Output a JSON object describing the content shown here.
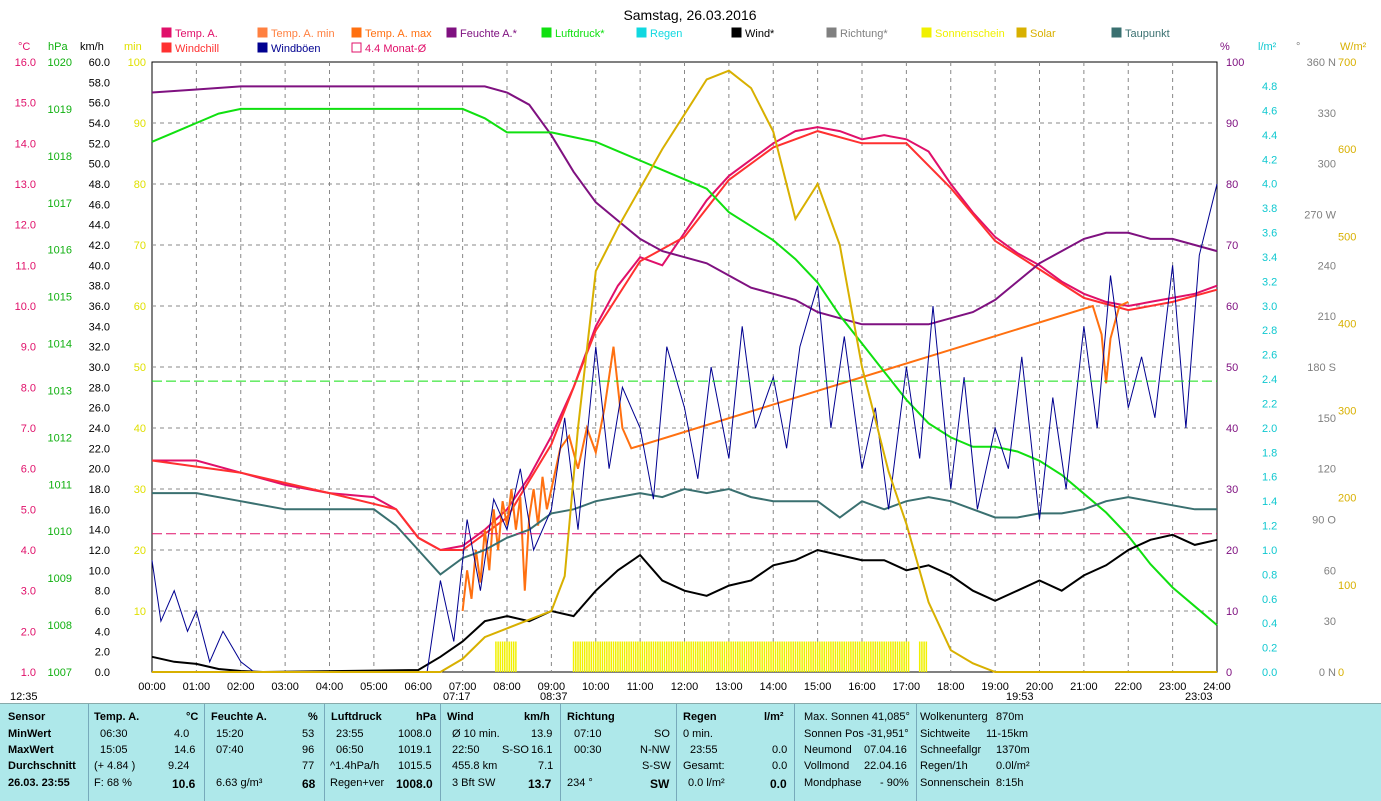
{
  "title": "Samstag, 26.03.2016",
  "legend": [
    {
      "label": "Temp. A.",
      "color": "#e0106a"
    },
    {
      "label": "Temp. A. min",
      "color": "#ff8040"
    },
    {
      "label": "Temp. A. max",
      "color": "#ff7010"
    },
    {
      "label": "Feuchte A.*",
      "color": "#7f1180"
    },
    {
      "label": "Luftdruck*",
      "color": "#10e010"
    },
    {
      "label": "Regen",
      "color": "#10d8e0"
    },
    {
      "label": "Wind*",
      "color": "#000000"
    },
    {
      "label": "Richtung*",
      "color": "#808080"
    },
    {
      "label": "Sonnenschein",
      "color": "#f0f000"
    },
    {
      "label": "Solar",
      "color": "#d8b000"
    },
    {
      "label": "Taupunkt",
      "color": "#3a7070"
    },
    {
      "label": "Windchill",
      "color": "#ff3030"
    },
    {
      "label": "Windböen",
      "color": "#000090"
    },
    {
      "label": "4.4 Monat-Ø",
      "color": "#e0106a"
    }
  ],
  "unit_labels": {
    "temp": "°C",
    "press": "hPa",
    "wind": "km/h",
    "min": "min",
    "hum": "%",
    "rain": "l/m²",
    "dir": "°",
    "solar": "W/m²"
  },
  "axes": {
    "temp": [
      "16.0",
      "15.0",
      "14.0",
      "13.0",
      "12.0",
      "11.0",
      "10.0",
      "9.0",
      "8.0",
      "7.0",
      "6.0",
      "5.0",
      "4.0",
      "3.0",
      "2.0",
      "1.0"
    ],
    "press": [
      "1020",
      "1019",
      "1018",
      "1017",
      "1016",
      "1015",
      "1014",
      "1013",
      "1012",
      "1011",
      "1010",
      "1009",
      "1008",
      "1007"
    ],
    "wind": [
      "60.0",
      "58.0",
      "56.0",
      "54.0",
      "52.0",
      "50.0",
      "48.0",
      "46.0",
      "44.0",
      "42.0",
      "40.0",
      "38.0",
      "36.0",
      "34.0",
      "32.0",
      "30.0",
      "28.0",
      "26.0",
      "24.0",
      "22.0",
      "20.0",
      "18.0",
      "16.0",
      "14.0",
      "12.0",
      "10.0",
      "8.0",
      "6.0",
      "4.0",
      "2.0",
      "0.0"
    ],
    "min": [
      "100",
      "90",
      "80",
      "70",
      "60",
      "50",
      "40",
      "30",
      "20",
      "10"
    ],
    "hum": [
      "100",
      "90",
      "80",
      "70",
      "60",
      "50",
      "40",
      "30",
      "20",
      "10",
      "0"
    ],
    "rain": [
      "4.8",
      "4.6",
      "4.4",
      "4.2",
      "4.0",
      "3.8",
      "3.6",
      "3.4",
      "3.2",
      "3.0",
      "2.8",
      "2.6",
      "2.4",
      "2.2",
      "2.0",
      "1.8",
      "1.6",
      "1.4",
      "1.2",
      "1.0",
      "0.8",
      "0.6",
      "0.4",
      "0.2",
      "0.0"
    ],
    "dir": [
      "360 N",
      "330",
      "300",
      "270 W",
      "240",
      "210",
      "180 S",
      "150",
      "120",
      "90 O",
      "60",
      "30",
      "0 N"
    ],
    "solar": [
      "700",
      "600",
      "500",
      "400",
      "300",
      "200",
      "100",
      "0"
    ],
    "time": [
      "00:00",
      "01:00",
      "02:00",
      "03:00",
      "04:00",
      "05:00",
      "06:00",
      "07:00",
      "08:00",
      "09:00",
      "10:00",
      "11:00",
      "12:00",
      "13:00",
      "14:00",
      "15:00",
      "16:00",
      "17:00",
      "18:00",
      "19:00",
      "20:00",
      "21:00",
      "22:00",
      "23:00",
      "24:00"
    ]
  },
  "time_markers": {
    "left": "12:35",
    "sunrise": "07:17",
    "solar_noon": "08:37",
    "sunset": "19:53",
    "moon": "23:03"
  },
  "chart_data": {
    "type": "line",
    "title": "Samstag, 26.03.2016",
    "x_unit": "hour",
    "temp_range": [
      1,
      16
    ],
    "press_range": [
      1007,
      1020
    ],
    "wind_range": [
      0,
      60
    ],
    "hum_range": [
      0,
      100
    ],
    "solar_range": [
      0,
      700
    ],
    "series": [
      {
        "name": "Temp. A.",
        "axis": "temp",
        "color": "#e0106a",
        "x": [
          0,
          1,
          2,
          3,
          4,
          5,
          5.5,
          6,
          6.5,
          7,
          7.5,
          8,
          8.5,
          9,
          9.5,
          10,
          10.5,
          11,
          11.5,
          12,
          12.5,
          13,
          13.5,
          14,
          14.5,
          15,
          15.5,
          16,
          16.5,
          17,
          17.5,
          18,
          18.5,
          19,
          19.5,
          20,
          20.5,
          21,
          21.5,
          22,
          22.5,
          23,
          23.5,
          24
        ],
        "y": [
          6.2,
          6.2,
          5.9,
          5.6,
          5.4,
          5.3,
          5.0,
          4.3,
          4.0,
          4.1,
          4.5,
          5.0,
          5.8,
          6.8,
          8.0,
          9.5,
          10.5,
          11.2,
          11.0,
          11.8,
          12.6,
          13.2,
          13.6,
          14.0,
          14.3,
          14.4,
          14.3,
          14.1,
          14.2,
          14.1,
          13.8,
          13.0,
          12.3,
          11.7,
          11.3,
          11.0,
          10.6,
          10.3,
          10.1,
          10.0,
          10.1,
          10.2,
          10.3,
          10.5
        ]
      },
      {
        "name": "Windchill",
        "axis": "temp",
        "color": "#ff3030",
        "x": [
          0,
          2,
          4,
          5.5,
          6,
          6.5,
          7,
          8,
          9,
          10,
          11,
          12,
          13,
          14,
          15,
          16,
          17,
          18,
          19,
          20,
          21,
          22,
          23,
          24
        ],
        "y": [
          6.2,
          5.9,
          5.4,
          5.0,
          4.3,
          4.0,
          4.0,
          4.8,
          6.6,
          9.4,
          11.1,
          11.7,
          13.1,
          13.9,
          14.3,
          14.0,
          14.0,
          12.9,
          11.6,
          10.9,
          10.2,
          9.9,
          10.1,
          10.4
        ]
      },
      {
        "name": "Temp. A. max",
        "axis": "temp",
        "color": "#ff7010",
        "x": [
          7.0,
          7.1,
          7.2,
          7.3,
          7.4,
          7.5,
          7.6,
          7.7,
          7.8,
          7.9,
          8.0,
          8.1,
          8.2,
          8.3,
          8.4,
          8.5,
          8.6,
          8.7,
          8.8,
          8.9,
          9.0,
          9.2,
          9.4,
          9.6,
          9.8,
          10.0,
          10.2,
          10.4,
          10.6,
          10.8,
          21.2,
          21.4,
          21.5,
          21.6,
          21.8,
          22.0
        ],
        "y": [
          2.5,
          3.5,
          2.8,
          4.0,
          3.2,
          4.5,
          3.5,
          5.0,
          4.0,
          5.2,
          4.6,
          5.5,
          4.5,
          5.3,
          3.0,
          4.8,
          5.5,
          4.6,
          5.8,
          5.0,
          5.5,
          6.5,
          6.8,
          6.0,
          7.0,
          6.4,
          7.5,
          9.0,
          7.0,
          6.5,
          10.0,
          9.3,
          8.1,
          9.2,
          10.0,
          10.1
        ]
      },
      {
        "name": "Feuchte A.*",
        "axis": "hum",
        "color": "#7f1180",
        "x": [
          0,
          1,
          2,
          3,
          4,
          5,
          6,
          7,
          7.5,
          8,
          8.5,
          9,
          9.5,
          10,
          10.5,
          11,
          11.5,
          12,
          12.5,
          13,
          13.5,
          14,
          14.5,
          15,
          15.5,
          16,
          16.5,
          17,
          17.5,
          18,
          18.5,
          19,
          19.5,
          20,
          20.5,
          21,
          21.5,
          22,
          22.5,
          23,
          23.5,
          24
        ],
        "y": [
          95,
          95.5,
          96,
          96,
          96,
          96,
          96,
          96,
          96,
          95,
          93,
          88,
          82,
          77,
          74,
          71,
          69,
          68,
          67,
          65,
          63,
          62,
          61,
          59,
          58,
          57,
          57,
          57,
          57,
          58,
          59,
          61,
          64,
          67,
          69,
          71,
          72,
          72,
          71,
          71,
          70,
          69
        ]
      },
      {
        "name": "Luftdruck*",
        "axis": "press",
        "color": "#10e010",
        "x": [
          0,
          0.5,
          1,
          1.5,
          2,
          2.5,
          3,
          3.5,
          4,
          4.5,
          5,
          5.5,
          6,
          6.5,
          7,
          7.5,
          8,
          8.5,
          9,
          9.5,
          10,
          10.5,
          11,
          11.5,
          12,
          12.5,
          13,
          13.5,
          14,
          14.5,
          15,
          15.5,
          16,
          16.5,
          17,
          17.5,
          18,
          18.5,
          19,
          19.5,
          20,
          20.5,
          21,
          21.5,
          22,
          22.5,
          23,
          23.5,
          24
        ],
        "y": [
          1018.3,
          1018.5,
          1018.7,
          1018.9,
          1019.0,
          1019.0,
          1019.0,
          1019.0,
          1019.0,
          1019.0,
          1019.0,
          1019.0,
          1019.0,
          1019.0,
          1019.0,
          1018.8,
          1018.5,
          1018.5,
          1018.5,
          1018.4,
          1018.3,
          1018.1,
          1017.9,
          1017.7,
          1017.5,
          1017.3,
          1016.8,
          1016.5,
          1016.2,
          1015.8,
          1015.3,
          1014.6,
          1014.0,
          1013.4,
          1012.8,
          1012.3,
          1012.0,
          1011.8,
          1011.8,
          1011.7,
          1011.5,
          1011.2,
          1010.8,
          1010.4,
          1009.9,
          1009.3,
          1008.8,
          1008.4,
          1008.0
        ]
      },
      {
        "name": "Taupunkt",
        "axis": "temp",
        "color": "#3a7070",
        "x": [
          0,
          1,
          2,
          3,
          4,
          5,
          5.5,
          6,
          6.5,
          7,
          7.5,
          8,
          8.5,
          9,
          9.5,
          10,
          10.5,
          11,
          11.5,
          12,
          12.5,
          13,
          13.5,
          14,
          14.5,
          15,
          15.5,
          16,
          16.5,
          17,
          17.5,
          18,
          18.5,
          19,
          19.5,
          20,
          20.5,
          21,
          21.5,
          22,
          22.5,
          23,
          23.5,
          24
        ],
        "y": [
          5.4,
          5.4,
          5.2,
          5.0,
          5.0,
          5.0,
          4.6,
          4.0,
          3.4,
          3.8,
          4.0,
          4.3,
          4.5,
          4.9,
          5.0,
          5.2,
          5.3,
          5.4,
          5.3,
          5.5,
          5.4,
          5.5,
          5.3,
          5.2,
          5.2,
          5.2,
          4.8,
          5.2,
          5.0,
          5.2,
          5.3,
          5.2,
          5.0,
          4.8,
          4.8,
          4.9,
          4.9,
          5.0,
          5.2,
          5.3,
          5.2,
          5.1,
          5.0,
          5.0
        ]
      },
      {
        "name": "Wind*",
        "axis": "wind",
        "color": "#000000",
        "x": [
          0,
          0.5,
          1,
          1.5,
          2,
          2.5,
          6,
          6.5,
          7,
          7.5,
          8,
          8.5,
          9,
          9.5,
          10,
          10.5,
          11,
          11.5,
          12,
          12.5,
          13,
          13.5,
          14,
          14.5,
          15,
          15.5,
          16,
          16.5,
          17,
          17.5,
          18,
          18.5,
          19,
          19.5,
          20,
          20.5,
          21,
          21.5,
          22,
          22.5,
          23,
          23.5,
          24
        ],
        "y": [
          1.5,
          1.0,
          0.8,
          0.3,
          0.1,
          0.0,
          0.2,
          1.5,
          3.0,
          5.0,
          5.5,
          5.0,
          6.0,
          5.5,
          8.0,
          10.0,
          11.5,
          9.0,
          8.0,
          7.5,
          8.5,
          9.0,
          10.5,
          11.0,
          12.0,
          11.5,
          11.0,
          11.0,
          10.0,
          10.5,
          9.5,
          8.0,
          7.0,
          8.0,
          9.0,
          8.0,
          9.5,
          10.5,
          12.0,
          13.0,
          13.5,
          12.5,
          13.0
        ]
      },
      {
        "name": "Windböen",
        "axis": "wind",
        "color": "#000090",
        "x": [
          0,
          0.2,
          0.5,
          0.8,
          1,
          1.3,
          1.6,
          2,
          2.3,
          6.2,
          6.5,
          6.8,
          7.1,
          7.4,
          7.7,
          8,
          8.3,
          8.6,
          9,
          9.3,
          9.6,
          10,
          10.3,
          10.6,
          11,
          11.3,
          11.6,
          12,
          12.3,
          12.6,
          13,
          13.3,
          13.6,
          14,
          14.3,
          14.6,
          15,
          15.3,
          15.6,
          16,
          16.3,
          16.6,
          17,
          17.3,
          17.6,
          18,
          18.3,
          18.6,
          19,
          19.3,
          19.6,
          20,
          20.3,
          20.6,
          21,
          21.3,
          21.6,
          22,
          22.3,
          22.6,
          23,
          23.3,
          23.6,
          24
        ],
        "y": [
          11,
          5,
          8,
          4,
          6,
          1,
          4,
          1,
          0,
          0,
          9,
          3,
          15,
          8,
          17,
          14,
          20,
          12,
          16,
          25,
          14,
          32,
          20,
          28,
          24,
          17,
          32,
          26,
          19,
          30,
          21,
          34,
          24,
          29,
          22,
          32,
          38,
          24,
          33,
          20,
          26,
          16,
          30,
          21,
          36,
          18,
          29,
          16,
          24,
          20,
          31,
          15,
          27,
          18,
          34,
          24,
          39,
          26,
          31,
          25,
          40,
          24,
          41,
          48
        ]
      },
      {
        "name": "Solar",
        "axis": "solar",
        "color": "#d8b000",
        "x": [
          0,
          6.5,
          7,
          7.5,
          8,
          8.5,
          9,
          9.3,
          9.6,
          10,
          10.5,
          11,
          11.5,
          12,
          12.5,
          13,
          13.5,
          14,
          14.5,
          15,
          15.5,
          16,
          16.3,
          16.6,
          17,
          17.5,
          18,
          18.5,
          19,
          24
        ],
        "y": [
          0,
          0,
          15,
          40,
          50,
          60,
          70,
          110,
          280,
          460,
          510,
          555,
          600,
          640,
          680,
          690,
          670,
          620,
          520,
          560,
          490,
          350,
          290,
          230,
          170,
          80,
          25,
          10,
          0,
          0
        ]
      },
      {
        "name": "Sonnenschein",
        "axis": "min",
        "color": "#f0f000",
        "type": "bar",
        "x": [
          7.75,
          9.5,
          17.3
        ],
        "x_end": [
          8.25,
          17.1,
          17.5
        ],
        "y": [
          5,
          5,
          5
        ]
      },
      {
        "name": "4.4 Monat-Ø",
        "axis": "temp",
        "color": "#e0106a",
        "type": "hline",
        "y": [
          4.4
        ]
      },
      {
        "name": "Luftdruck ref",
        "axis": "press",
        "color": "#10e010",
        "type": "hline",
        "y": [
          1013.2
        ]
      }
    ]
  },
  "stats": {
    "col1": {
      "h": "Sensor",
      "r1": "MinWert",
      "r2": "MaxWert",
      "r3": "Durchschnitt",
      "r4": "26.03. 23:55"
    },
    "col2": {
      "h": "Temp. A.",
      "hu": "°C",
      "r1a": "06:30",
      "r1b": "4.0",
      "r2a": "15:05",
      "r2b": "14.6",
      "r3a": "(+ 4.84 )",
      "r3b": "9.24",
      "r4a": "F: 68 %",
      "r4b": "10.6"
    },
    "col3": {
      "h": "Feuchte A.",
      "hu": "%",
      "r1a": "15:20",
      "r1b": "53",
      "r2a": "07:40",
      "r2b": "96",
      "r3b": "77",
      "r4a": "6.63 g/m³",
      "r4b": "68"
    },
    "col4": {
      "h": "Luftdruck",
      "hu": "hPa",
      "r1a": "23:55",
      "r1b": "1008.0",
      "r2a": "06:50",
      "r2b": "1019.1",
      "r3a": "^1.4hPa/h",
      "r3b": "1015.5",
      "r4a": "Regen+ver",
      "r4b": "1008.0"
    },
    "col5": {
      "h": "Wind",
      "hu": "km/h",
      "r1a": "Ø 10 min.",
      "r1b": "13.9",
      "r2a": "22:50",
      "r2m": "S-SO",
      "r2b": "16.1",
      "r3a": "455.8 km",
      "r3b": "7.1",
      "r4a": "3 Bft SW",
      "r4b": "13.7"
    },
    "col6": {
      "h": "Richtung",
      "r1a": "07:10",
      "r1b": "SO",
      "r2a": "00:30",
      "r2b": "N-NW",
      "r3b": "S-SW",
      "r4a": "234 °",
      "r4b": "SW"
    },
    "col7": {
      "h": "Regen",
      "hu": "l/m²",
      "r1a": "0 min.",
      "r2a": "23:55",
      "r2b": "0.0",
      "r3a": "Gesamt:",
      "r3b": "0.0",
      "r4a": "0.0 l/m²",
      "r4b": "0.0"
    },
    "col8": {
      "r1": "Max. Sonnen 41,085°",
      "r2": "Sonnen Pos -31,951°",
      "r3a": "Neumond",
      "r3b": "07.04.16",
      "r4a": "Vollmond",
      "r4b": "22.04.16",
      "r5a": "Mondphase",
      "r5b": "- 90%"
    },
    "col9": {
      "r1a": "Wolkenunterg",
      "r1b": "870m",
      "r2a": "Sichtweite",
      "r2b": "11-15km",
      "r3a": "Schneefallgr",
      "r3b": "1370m",
      "r4a": "Regen/1h",
      "r4b": "0.0l/m²",
      "r5a": "Sonnenschein",
      "r5b": "8:15h"
    }
  }
}
